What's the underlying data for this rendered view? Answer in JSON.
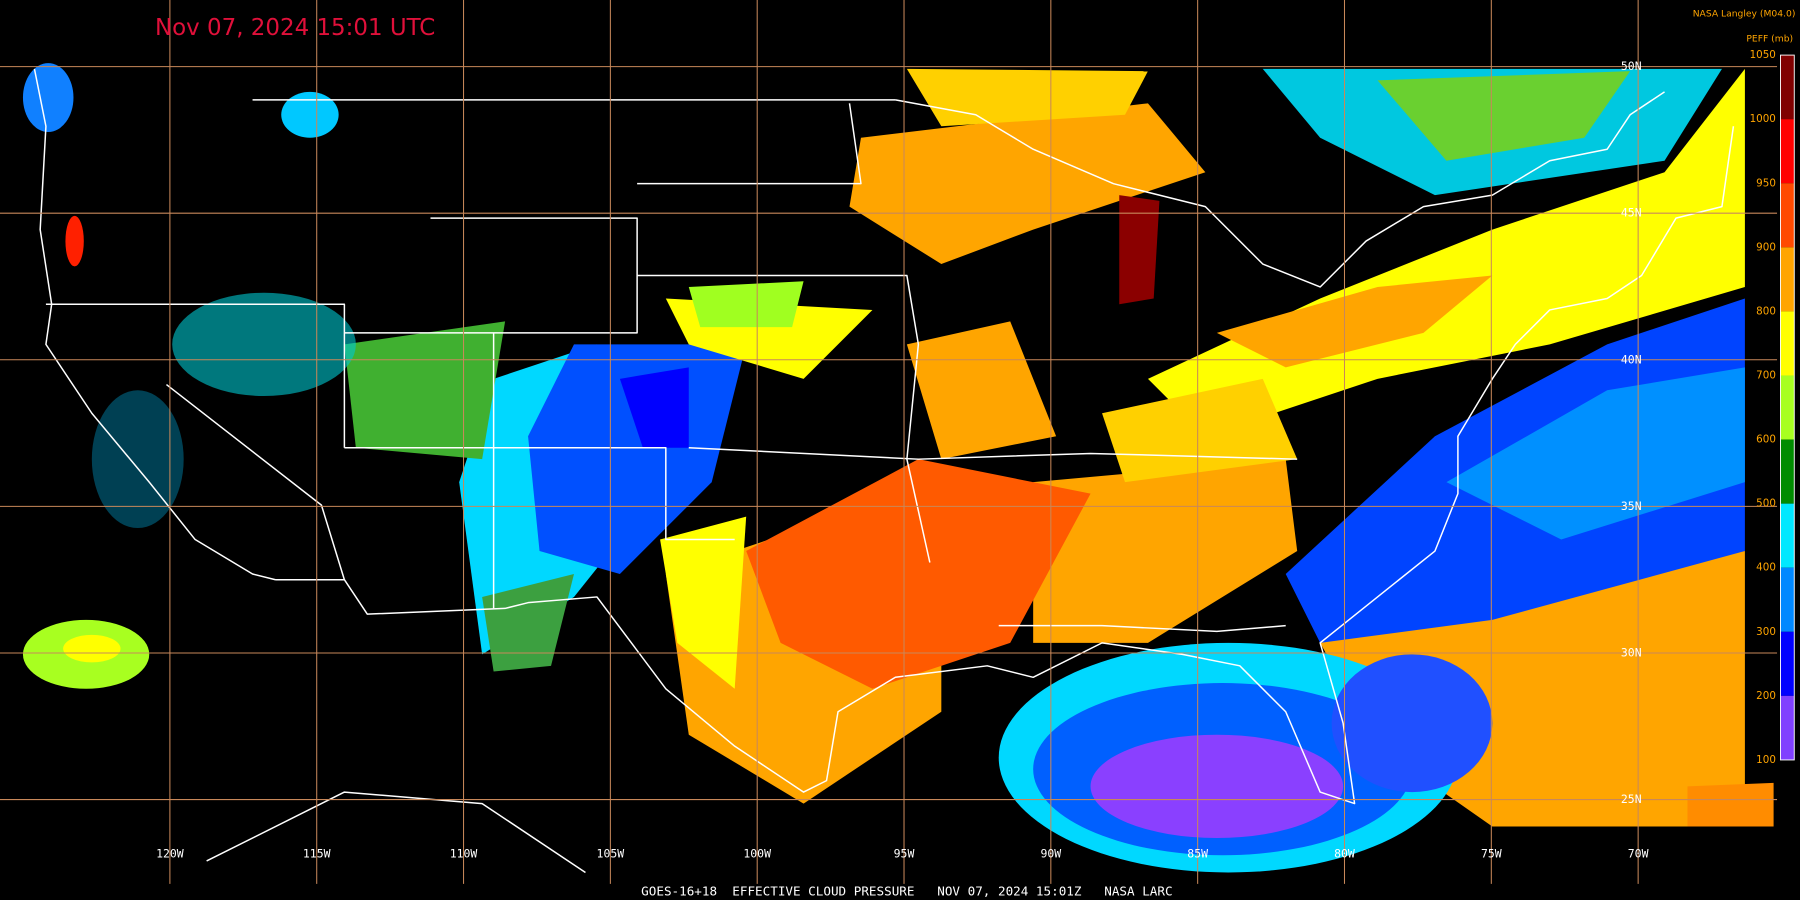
{
  "header": {
    "title": "Nov 07, 2024 15:01 UTC",
    "source": "NASA Langley (M04.0)"
  },
  "legend": {
    "title": "PEFF (mb)",
    "ticks": [
      1050,
      1000,
      950,
      900,
      800,
      700,
      600,
      500,
      400,
      300,
      200,
      100
    ],
    "colors": [
      "#800000",
      "#ff0000",
      "#ff4a00",
      "#ffa500",
      "#ffff00",
      "#a8ff20",
      "#008c00",
      "#00e8ff",
      "#0088ff",
      "#0000ff",
      "#8040ff"
    ]
  },
  "map": {
    "longitude_labels": [
      "120W",
      "115W",
      "110W",
      "105W",
      "100W",
      "95W",
      "90W",
      "85W",
      "80W",
      "75W",
      "70W"
    ],
    "latitude_labels": [
      "50N",
      "45N",
      "40N",
      "35N",
      "30N",
      "25N"
    ]
  },
  "footer": {
    "caption": "GOES-16+18  EFFECTIVE CLOUD PRESSURE   NOV 07, 2024 15:01Z   NASA LARC"
  }
}
